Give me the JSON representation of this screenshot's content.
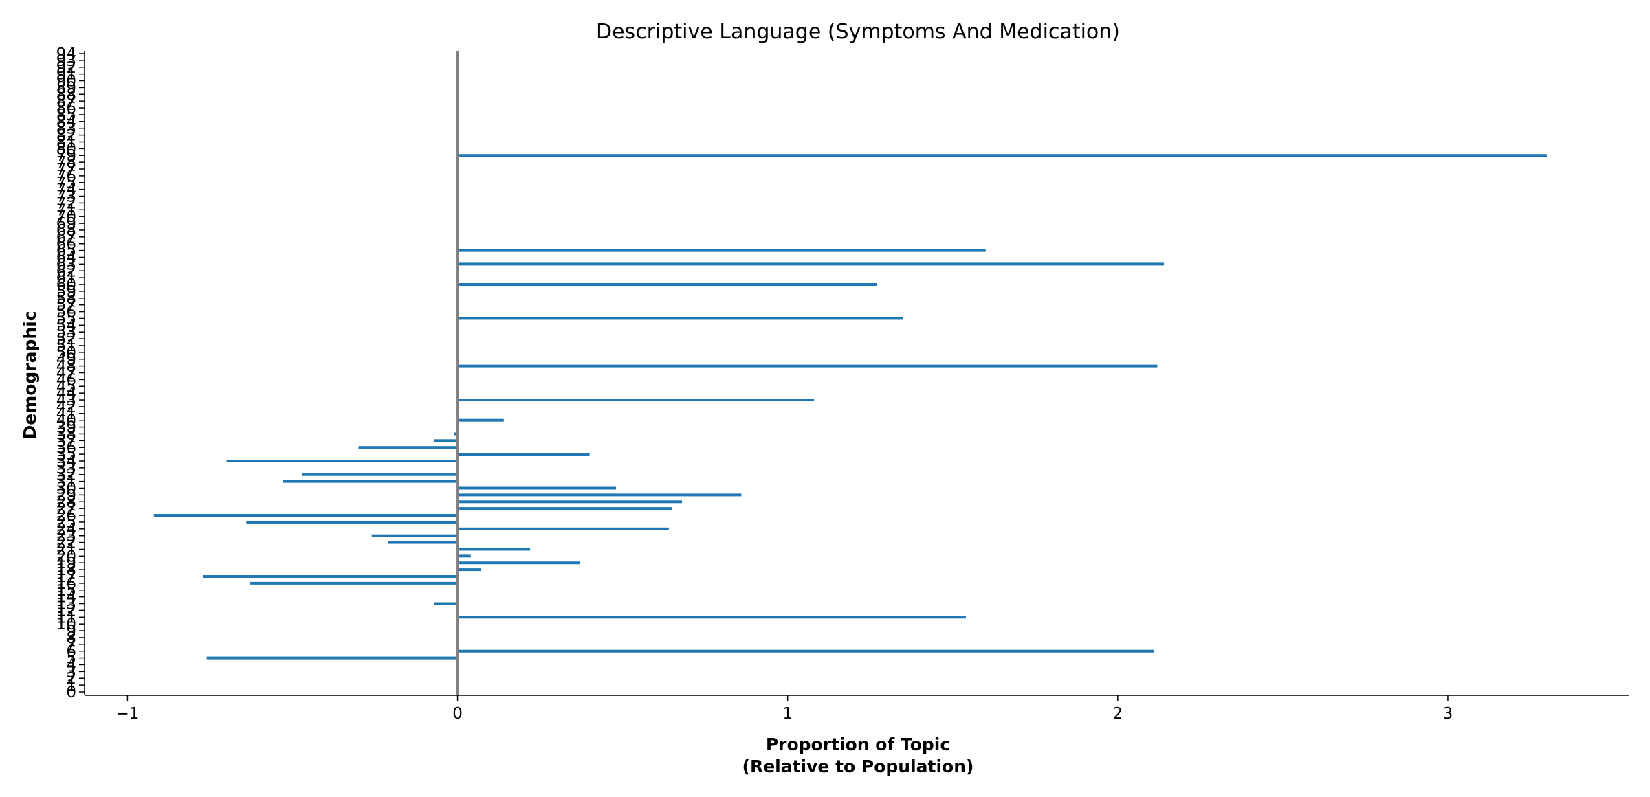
{
  "chart_data": {
    "type": "bar",
    "orientation": "horizontal",
    "title": "Descriptive Language (Symptoms And Medication)",
    "xlabel_lines": [
      "Proportion of Topic",
      "(Relative to Population)"
    ],
    "ylabel": "Demographic",
    "xlim": [
      -1.0,
      3.5
    ],
    "ylim": [
      0,
      94
    ],
    "x_ticks": [
      -1,
      0,
      1,
      2,
      3
    ],
    "x_tick_labels": [
      "−1",
      "0",
      "1",
      "2",
      "3"
    ],
    "y_ticks": [
      0,
      1,
      2,
      3,
      4,
      5,
      6,
      7,
      8,
      9,
      10,
      11,
      12,
      13,
      14,
      15,
      16,
      17,
      18,
      19,
      20,
      21,
      22,
      23,
      24,
      25,
      26,
      27,
      28,
      29,
      30,
      31,
      32,
      33,
      34,
      35,
      36,
      37,
      38,
      39,
      40,
      41,
      42,
      43,
      44,
      45,
      46,
      47,
      48,
      49,
      50,
      51,
      52,
      53,
      54,
      55,
      56,
      57,
      58,
      59,
      60,
      61,
      62,
      63,
      64,
      65,
      66,
      67,
      68,
      69,
      70,
      71,
      72,
      73,
      74,
      75,
      76,
      77,
      78,
      79,
      80,
      81,
      82,
      83,
      84,
      85,
      86,
      87,
      88,
      89,
      90,
      91,
      92,
      93,
      94
    ],
    "bar_color": "#1f77b4",
    "zero_line_color": "#808080",
    "grid": false,
    "bars": [
      {
        "y": 5,
        "value": -0.76
      },
      {
        "y": 6,
        "value": 2.11
      },
      {
        "y": 11,
        "value": 1.54
      },
      {
        "y": 13,
        "value": -0.07
      },
      {
        "y": 16,
        "value": -0.63
      },
      {
        "y": 17,
        "value": -0.77
      },
      {
        "y": 18,
        "value": 0.07
      },
      {
        "y": 19,
        "value": 0.37
      },
      {
        "y": 20,
        "value": 0.04
      },
      {
        "y": 21,
        "value": 0.22
      },
      {
        "y": 22,
        "value": -0.21
      },
      {
        "y": 23,
        "value": -0.26
      },
      {
        "y": 24,
        "value": 0.64
      },
      {
        "y": 25,
        "value": -0.64
      },
      {
        "y": 26,
        "value": -0.92
      },
      {
        "y": 27,
        "value": 0.65
      },
      {
        "y": 28,
        "value": 0.68
      },
      {
        "y": 29,
        "value": 0.86
      },
      {
        "y": 30,
        "value": 0.48
      },
      {
        "y": 31,
        "value": -0.53
      },
      {
        "y": 32,
        "value": -0.47
      },
      {
        "y": 34,
        "value": -0.7
      },
      {
        "y": 35,
        "value": 0.4
      },
      {
        "y": 36,
        "value": -0.3
      },
      {
        "y": 37,
        "value": -0.07
      },
      {
        "y": 38,
        "value": -0.01
      },
      {
        "y": 40,
        "value": 0.14
      },
      {
        "y": 43,
        "value": 1.08
      },
      {
        "y": 48,
        "value": 2.12
      },
      {
        "y": 55,
        "value": 1.35
      },
      {
        "y": 60,
        "value": 1.27
      },
      {
        "y": 63,
        "value": 2.14
      },
      {
        "y": 65,
        "value": 1.6
      },
      {
        "y": 79,
        "value": 3.3
      }
    ]
  }
}
